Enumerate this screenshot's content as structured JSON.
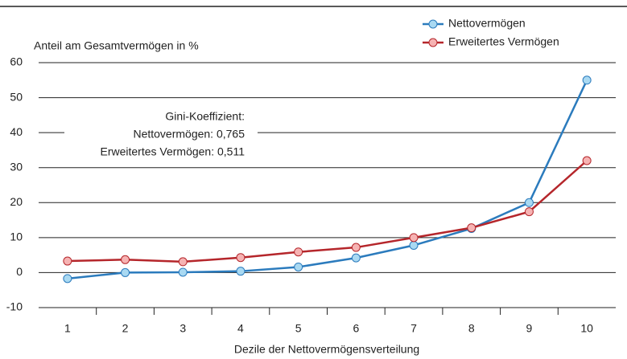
{
  "chart_data": {
    "type": "line",
    "y_label": "Anteil am  Gesamtvermögen in %",
    "x_label": "Dezile der Nettovermögensverteilung",
    "annotation": [
      "Gini-Koeffizient:",
      "Nettovermögen: 0,765",
      "Erweitertes Vermögen: 0,511"
    ],
    "categories": [
      "1",
      "2",
      "3",
      "4",
      "5",
      "6",
      "7",
      "8",
      "9",
      "10"
    ],
    "series": [
      {
        "name": "Nettovermögen",
        "color": "#2b7bbd",
        "marker_fill": "#a9d9f2",
        "values": [
          -1.7,
          0,
          0.1,
          0.4,
          1.6,
          4.2,
          7.8,
          12.6,
          20,
          55
        ]
      },
      {
        "name": "Erweitertes Vermögen",
        "color": "#b5262b",
        "marker_fill": "#f6b3b3",
        "values": [
          3.3,
          3.7,
          3.1,
          4.3,
          5.9,
          7.2,
          10,
          12.8,
          17.4,
          32
        ]
      }
    ],
    "ylim": [
      -10,
      60
    ],
    "yticks": [
      -10,
      0,
      10,
      20,
      30,
      40,
      50,
      60
    ],
    "grid": true,
    "legend": "upper right"
  }
}
